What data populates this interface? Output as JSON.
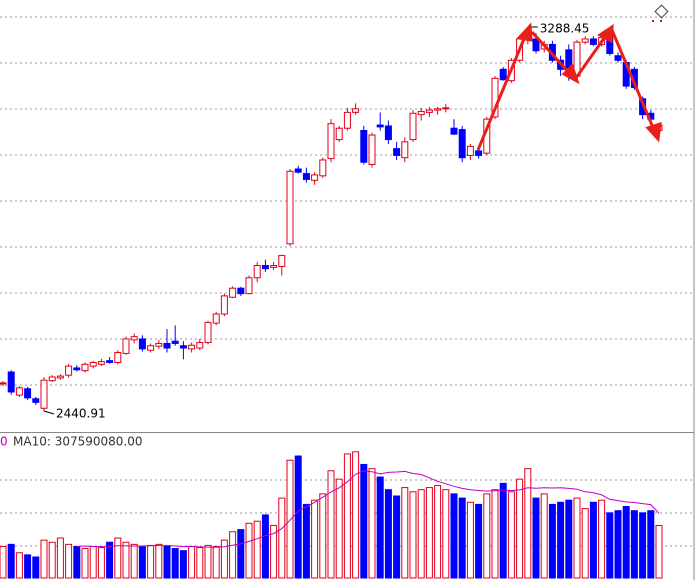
{
  "chart_data": [
    {
      "type": "candlestick",
      "open": [
        2503,
        2527,
        2476,
        2490,
        2468,
        2447,
        2508,
        2514,
        2520,
        2536,
        2530,
        2540,
        2544,
        2552,
        2548,
        2568,
        2598,
        2600,
        2575,
        2584,
        2590,
        2595,
        2585,
        2578,
        2580,
        2592,
        2635,
        2655,
        2692,
        2712,
        2700,
        2735,
        2762,
        2758,
        2760,
        2810,
        2975,
        2965,
        2950,
        2960,
        2998,
        3040,
        3065,
        3100,
        3060,
        2985,
        3072,
        3070,
        3020,
        3000,
        3040,
        3095,
        3100,
        3105,
        3108,
        3065,
        3062,
        3005,
        3015,
        3010,
        3090,
        3195,
        3170,
        3215,
        3262,
        3262,
        3240,
        3250,
        3215,
        3238,
        3180,
        3255,
        3262,
        3250,
        3282,
        3225,
        3210,
        3195,
        3130,
        3098,
        3060
      ],
      "high": [
        2507,
        2531,
        2496,
        2494,
        2472,
        2516,
        2520,
        2522,
        2545,
        2542,
        2548,
        2552,
        2556,
        2560,
        2575,
        2605,
        2612,
        2608,
        2590,
        2598,
        2622,
        2630,
        2595,
        2592,
        2600,
        2640,
        2660,
        2700,
        2716,
        2715,
        2740,
        2770,
        2775,
        2770,
        2786,
        2975,
        2982,
        2978,
        2968,
        3000,
        3085,
        3070,
        3110,
        3120,
        3070,
        3055,
        3100,
        3082,
        3035,
        3045,
        3105,
        3110,
        3112,
        3112,
        3118,
        3085,
        3070,
        3030,
        3022,
        3090,
        3180,
        3200,
        3220,
        3270,
        3288.45,
        3275,
        3258,
        3258,
        3225,
        3250,
        3260,
        3268,
        3268,
        3270,
        3286,
        3232,
        3215,
        3200,
        3135,
        3105,
        3075
      ],
      "low": [
        2496,
        2477,
        2472,
        2465,
        2454,
        2440.91,
        2505,
        2510,
        2515,
        2528,
        2526,
        2535,
        2540,
        2545,
        2544,
        2565,
        2590,
        2572,
        2570,
        2578,
        2570,
        2585,
        2555,
        2570,
        2575,
        2588,
        2630,
        2650,
        2690,
        2695,
        2698,
        2725,
        2748,
        2752,
        2740,
        2805,
        2965,
        2945,
        2940,
        2955,
        2990,
        3035,
        3060,
        3095,
        2985,
        2978,
        3060,
        3030,
        2995,
        2990,
        3035,
        3082,
        3090,
        3095,
        3100,
        3050,
        2990,
        2995,
        2998,
        3005,
        3085,
        3170,
        3165,
        3210,
        3250,
        3230,
        3232,
        3210,
        3180,
        3170,
        3170,
        3250,
        3246,
        3245,
        3225,
        3210,
        3152,
        3150,
        3085,
        3080,
        3055
      ],
      "close": [
        2503,
        2483,
        2492,
        2470,
        2460,
        2509,
        2516,
        2518,
        2540,
        2532,
        2544,
        2548,
        2550,
        2548,
        2570,
        2600,
        2605,
        2578,
        2585,
        2590,
        2580,
        2590,
        2580,
        2586,
        2592,
        2636,
        2655,
        2695,
        2712,
        2700,
        2735,
        2762,
        2755,
        2762,
        2784,
        2970,
        2968,
        2952,
        2962,
        2995,
        3075,
        3065,
        3100,
        3108,
        2990,
        3050,
        3068,
        3040,
        3005,
        3035,
        3098,
        3102,
        3105,
        3108,
        3110,
        3052,
        3000,
        3025,
        3005,
        3085,
        3175,
        3172,
        3215,
        3262,
        3270,
        3236,
        3250,
        3215,
        3195,
        3180,
        3255,
        3262,
        3250,
        3265,
        3230,
        3215,
        3158,
        3155,
        3095,
        3085,
        3072
      ],
      "ylim": [
        2394.6,
        3348
      ],
      "up_color": "#e0001b",
      "down_color": "#0000ff",
      "annotations": [
        "3288.45",
        "2440.91"
      ]
    },
    {
      "type": "volume",
      "label_prefix": "0",
      "label": "MA10: 307590080.00",
      "values": [
        150000000,
        160000000,
        120000000,
        110000000,
        100000000,
        180000000,
        170000000,
        190000000,
        160000000,
        150000000,
        140000000,
        150000000,
        145000000,
        170000000,
        190000000,
        170000000,
        160000000,
        150000000,
        155000000,
        160000000,
        150000000,
        140000000,
        130000000,
        150000000,
        145000000,
        155000000,
        150000000,
        180000000,
        220000000,
        230000000,
        260000000,
        270000000,
        300000000,
        250000000,
        380000000,
        560000000,
        580000000,
        350000000,
        370000000,
        400000000,
        510000000,
        470000000,
        590000000,
        600000000,
        540000000,
        520000000,
        480000000,
        420000000,
        390000000,
        430000000,
        410000000,
        420000000,
        430000000,
        440000000,
        420000000,
        400000000,
        380000000,
        360000000,
        350000000,
        400000000,
        420000000,
        450000000,
        410000000,
        470000000,
        520000000,
        380000000,
        400000000,
        350000000,
        360000000,
        370000000,
        380000000,
        330000000,
        360000000,
        370000000,
        310000000,
        320000000,
        340000000,
        320000000,
        310000000,
        320000000,
        250000000
      ],
      "ma10": [
        null,
        null,
        null,
        null,
        null,
        null,
        null,
        null,
        null,
        150000000,
        152000000,
        150000000,
        149000000,
        150000000,
        153000000,
        153000000,
        152000000,
        152000000,
        153000000,
        155000000,
        155000000,
        152000000,
        150000000,
        150000000,
        148000000,
        147000000,
        146000000,
        149000000,
        156000000,
        163000000,
        174000000,
        187000000,
        201000000,
        211000000,
        235000000,
        275000000,
        318000000,
        338000000,
        360000000,
        384000000,
        409000000,
        429000000,
        458000000,
        493000000,
        509000000,
        505000000,
        495000000,
        502000000,
        504000000,
        507000000,
        497000000,
        492000000,
        476000000,
        460000000,
        448000000,
        436000000,
        426000000,
        420000000,
        416000000,
        413000000,
        415000000,
        418000000,
        416000000,
        419000000,
        429000000,
        427000000,
        429000000,
        428000000,
        429000000,
        426000000,
        422000000,
        410000000,
        405000000,
        395000000,
        374000000,
        368000000,
        362000000,
        359000000,
        354000000,
        349000000,
        307590080
      ],
      "ma10_color": "#c000c0",
      "ylim": [
        0,
        680000000
      ]
    }
  ]
}
